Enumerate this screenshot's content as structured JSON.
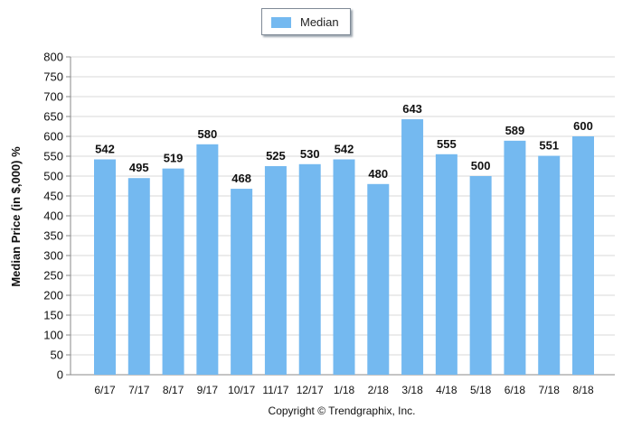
{
  "chart_data": {
    "type": "bar",
    "title": "",
    "xlabel": "",
    "ylabel": "Median Price (in $,000) %",
    "categories": [
      "6/17",
      "7/17",
      "8/17",
      "9/17",
      "10/17",
      "11/17",
      "12/17",
      "1/18",
      "2/18",
      "3/18",
      "4/18",
      "5/18",
      "6/18",
      "7/18",
      "8/18"
    ],
    "series": [
      {
        "name": "Median",
        "values": [
          542,
          495,
          519,
          580,
          468,
          525,
          530,
          542,
          480,
          643,
          555,
          500,
          589,
          551,
          600
        ]
      }
    ],
    "ylim": [
      0,
      800
    ],
    "yticks": [
      0,
      50,
      100,
      150,
      200,
      250,
      300,
      350,
      400,
      450,
      500,
      550,
      600,
      650,
      700,
      750,
      800
    ],
    "grid": true,
    "legend": "top-center",
    "data_labels": true,
    "bar_color": "#74b9f0",
    "footer": "Copyright © Trendgraphix, Inc."
  }
}
